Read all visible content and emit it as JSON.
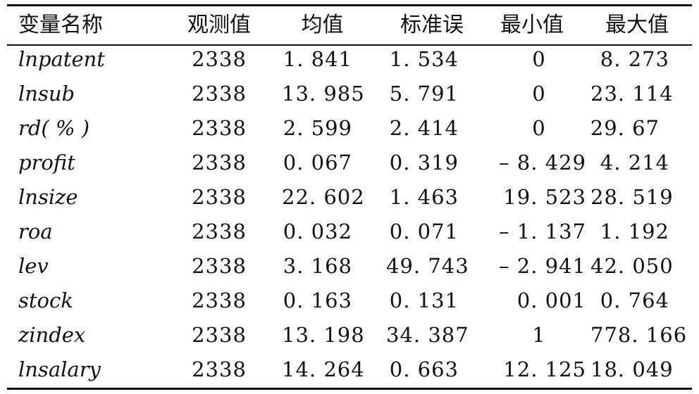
{
  "table": {
    "headers": [
      "变量名称",
      "观测值",
      "均值",
      "标准误",
      "最小值",
      "最大值"
    ],
    "rows": [
      [
        "lnpatent",
        "2338",
        "1. 841",
        "1. 534",
        "0",
        "8. 273"
      ],
      [
        "lnsub",
        "2338",
        "13. 985",
        "5. 791",
        "0",
        "23. 114"
      ],
      [
        "rd( % )",
        "2338",
        "2. 599",
        "2. 414",
        "0",
        "29. 67"
      ],
      [
        "profit",
        "2338",
        "0. 067",
        "0. 319",
        "– 8. 429",
        "4. 214"
      ],
      [
        "lnsize",
        "2338",
        "22. 602",
        "1. 463",
        "19. 523",
        "28. 519"
      ],
      [
        "roa",
        "2338",
        "0. 032",
        "0. 071",
        "– 1. 137",
        "1. 192"
      ],
      [
        "lev",
        "2338",
        "3. 168",
        "49. 743",
        "– 2. 941",
        "42. 050"
      ],
      [
        "stock",
        "2338",
        "0. 163",
        "0. 131",
        "0. 001",
        "0. 764"
      ],
      [
        "zindex",
        "2338",
        "13. 198",
        "34. 387",
        "1",
        "778. 166"
      ],
      [
        "lnsalary",
        "2338",
        "14. 264",
        "0. 663",
        "12. 125",
        "18. 049"
      ]
    ]
  }
}
